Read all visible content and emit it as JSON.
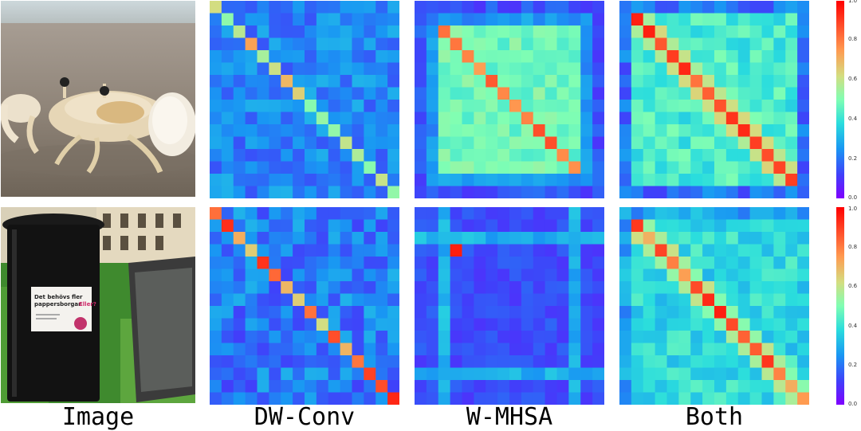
{
  "columns": [
    "Image",
    "DW-Conv",
    "W-MHSA",
    "Both"
  ],
  "photos": [
    {
      "subject": "crab on sandy beach",
      "icon": "crab-photo"
    },
    {
      "subject": "trash bins in park",
      "icon": "trash-bin-photo",
      "sign_line1": "Det behövs fler",
      "sign_line2": "pappersborgar.",
      "sign_emph": "Eller?"
    }
  ],
  "colorbar": {
    "ticks": [
      "1.0",
      "0.8",
      "0.6",
      "0.4",
      "0.2",
      "0.0"
    ],
    "colormap": "rainbow"
  },
  "chart_data": [
    {
      "type": "heatmap",
      "row": 1,
      "method": "DW-Conv",
      "size": 16,
      "vmin": 0,
      "vmax": 1
    },
    {
      "type": "heatmap",
      "row": 1,
      "method": "W-MHSA",
      "size": 16,
      "vmin": 0,
      "vmax": 1
    },
    {
      "type": "heatmap",
      "row": 1,
      "method": "Both",
      "size": 16,
      "vmin": 0,
      "vmax": 1
    },
    {
      "type": "heatmap",
      "row": 2,
      "method": "DW-Conv",
      "size": 16,
      "vmin": 0,
      "vmax": 1
    },
    {
      "type": "heatmap",
      "row": 2,
      "method": "W-MHSA",
      "size": 16,
      "vmin": 0,
      "vmax": 1
    },
    {
      "type": "heatmap",
      "row": 2,
      "method": "Both",
      "size": 16,
      "vmin": 0,
      "vmax": 1
    }
  ]
}
